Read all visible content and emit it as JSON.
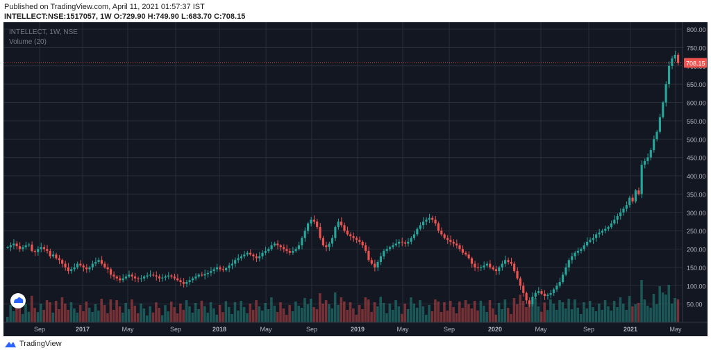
{
  "header": {
    "published": "Published on TradingView.com, April 11, 2021 01:57:37 IST",
    "symbol_line": "INTELLECT:NSE:1517057, 1W",
    "open": "O:729.90",
    "high": "H:749.90",
    "low": "L:683.70",
    "close": "C:708.15"
  },
  "legend": {
    "title": "INTELLECT, 1W, NSE",
    "volume": "Volume (20)"
  },
  "footer": {
    "brand": "TradingView"
  },
  "colors": {
    "up": "#26a69a",
    "down": "#ef5350",
    "background": "#131722",
    "price_line": "#ef5350"
  },
  "chart_data": {
    "type": "candlestick",
    "price_axis": {
      "min": 0,
      "max": 800,
      "ticks": [
        50,
        100,
        150,
        200,
        250,
        300,
        350,
        400,
        450,
        500,
        550,
        600,
        650,
        700,
        750,
        800
      ],
      "tick_labels": [
        "50.00",
        "100.00",
        "150.00",
        "200.00",
        "250.00",
        "300.00",
        "350.00",
        "400.00",
        "450.00",
        "500.00",
        "550.00",
        "600.00",
        "650.00",
        "700.00",
        "750.00",
        "800.00"
      ]
    },
    "time_labels": [
      "Sep",
      "2017",
      "May",
      "Sep",
      "2018",
      "May",
      "Sep",
      "2019",
      "May",
      "Sep",
      "2020",
      "May",
      "Sep",
      "2021",
      "May"
    ],
    "last_price": 708.15,
    "last_price_label": "708.15",
    "close_series": [
      205,
      210,
      215,
      208,
      200,
      205,
      210,
      212,
      195,
      192,
      200,
      205,
      200,
      195,
      180,
      185,
      175,
      170,
      160,
      150,
      140,
      145,
      150,
      160,
      155,
      150,
      145,
      150,
      160,
      165,
      170,
      160,
      150,
      145,
      130,
      125,
      120,
      115,
      120,
      125,
      130,
      125,
      120,
      118,
      120,
      125,
      128,
      130,
      128,
      125,
      120,
      122,
      125,
      128,
      125,
      120,
      115,
      110,
      105,
      110,
      115,
      120,
      125,
      130,
      128,
      132,
      135,
      140,
      145,
      150,
      145,
      142,
      148,
      155,
      160,
      170,
      175,
      180,
      185,
      190,
      185,
      180,
      175,
      180,
      190,
      195,
      200,
      210,
      215,
      210,
      205,
      200,
      195,
      190,
      195,
      200,
      210,
      230,
      250,
      270,
      280,
      275,
      260,
      230,
      210,
      205,
      215,
      230,
      260,
      275,
      265,
      250,
      240,
      235,
      230,
      225,
      220,
      210,
      195,
      170,
      160,
      150,
      165,
      180,
      195,
      200,
      205,
      210,
      215,
      220,
      218,
      215,
      220,
      230,
      240,
      255,
      265,
      275,
      280,
      285,
      280,
      270,
      250,
      240,
      230,
      225,
      220,
      215,
      210,
      200,
      190,
      185,
      175,
      160,
      150,
      148,
      150,
      155,
      160,
      150,
      145,
      140,
      150,
      160,
      170,
      165,
      160,
      140,
      120,
      100,
      80,
      60,
      50,
      70,
      80,
      85,
      78,
      72,
      75,
      80,
      90,
      100,
      110,
      130,
      150,
      170,
      180,
      190,
      195,
      200,
      210,
      220,
      225,
      230,
      240,
      245,
      250,
      255,
      260,
      270,
      280,
      290,
      300,
      310,
      320,
      340,
      330,
      360,
      350,
      430,
      440,
      450,
      470,
      500,
      520,
      560,
      600,
      650,
      700,
      720,
      730,
      708
    ]
  }
}
